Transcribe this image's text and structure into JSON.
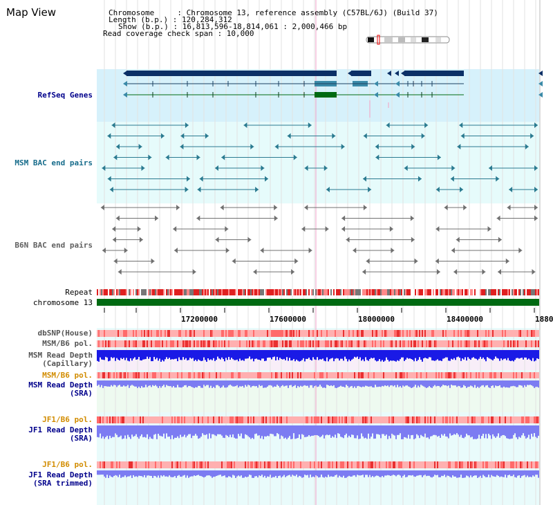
{
  "view_title": "Map View",
  "info": {
    "chromosome_line": "Chromosome     : Chromosome 13, reference assembly (C57BL/6J) (Build 37)",
    "length_line": "Length (b.p.) : 120,284,312",
    "show_line": "Show (b.p.) : 16,813,596-18,814,061 : 2,000,466 bp",
    "coverage_line": "Read coverage check span : 10,000"
  },
  "tracks": {
    "refseq": "RefSeq Genes",
    "msm_bac": "MSM BAC end pairs",
    "b6n_bac": "B6N BAC end pairs",
    "repeat": "Repeat",
    "chromosome": "chromosome 13",
    "dbsnp": "dbSNP(House)",
    "msm_pol": "MSM/B6 pol.",
    "msm_depth_cap_1": "MSM Read Depth",
    "msm_depth_cap_2": "(Capillary)",
    "msm_pol_2": "MSM/B6 pol.",
    "msm_depth_sra_1": "MSM Read Depth",
    "msm_depth_sra_2": "(SRA)",
    "jf1_pol": "JF1/B6 pol.",
    "jf1_depth_sra_1": "JF1 Read Depth",
    "jf1_depth_sra_2": "(SRA)",
    "jf1_pol_2": "JF1/B6 pol.",
    "jf1_depth_trim_1": "JF1 Read Depth",
    "jf1_depth_trim_2": "(SRA trimmed)"
  },
  "axis": {
    "ticks": [
      "17200000",
      "17600000",
      "18000000",
      "18400000",
      "1880"
    ]
  },
  "colors": {
    "refseq_bg": "#d6f1fb",
    "msm_bg": "#e6fbfb",
    "gene_navy": "#0b2f66",
    "gene_teal": "#3a8aa8",
    "gene_green": "#006a12",
    "msm_pair": "#2a7a90",
    "b6n_pair": "#707070",
    "chromosome_bar": "#006a12",
    "label_blue": "#00008b",
    "label_teal": "#176c8b",
    "label_orange": "#d28c00",
    "depth_blue": "#1a1ae6",
    "depth_light": "#7c7cf2"
  }
}
